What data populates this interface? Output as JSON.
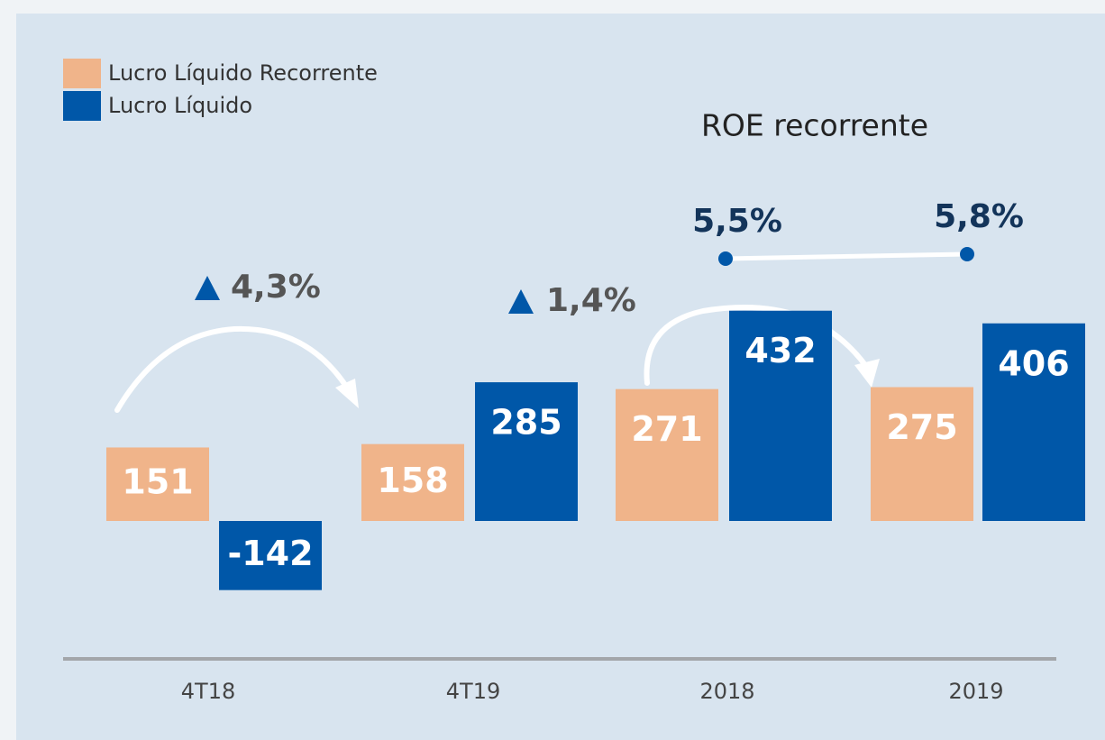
{
  "chart_data": {
    "type": "bar",
    "categories": [
      "4T18",
      "4T19",
      "2018",
      "2019"
    ],
    "series": [
      {
        "name": "Lucro Líquido Recorrente",
        "color": "#f0b48a",
        "values": [
          151,
          158,
          271,
          275
        ]
      },
      {
        "name": "Lucro Líquido",
        "color": "#0057a8",
        "values": [
          -142,
          285,
          432,
          406
        ]
      }
    ],
    "annotations": [
      {
        "text": "4,3%"
      },
      {
        "text": "1,4%"
      }
    ],
    "roe": {
      "title": "ROE recorrente",
      "color": "#0057a8",
      "values": [
        5.5,
        5.8
      ],
      "value_labels": [
        "5,5%",
        "5,8%"
      ]
    }
  }
}
